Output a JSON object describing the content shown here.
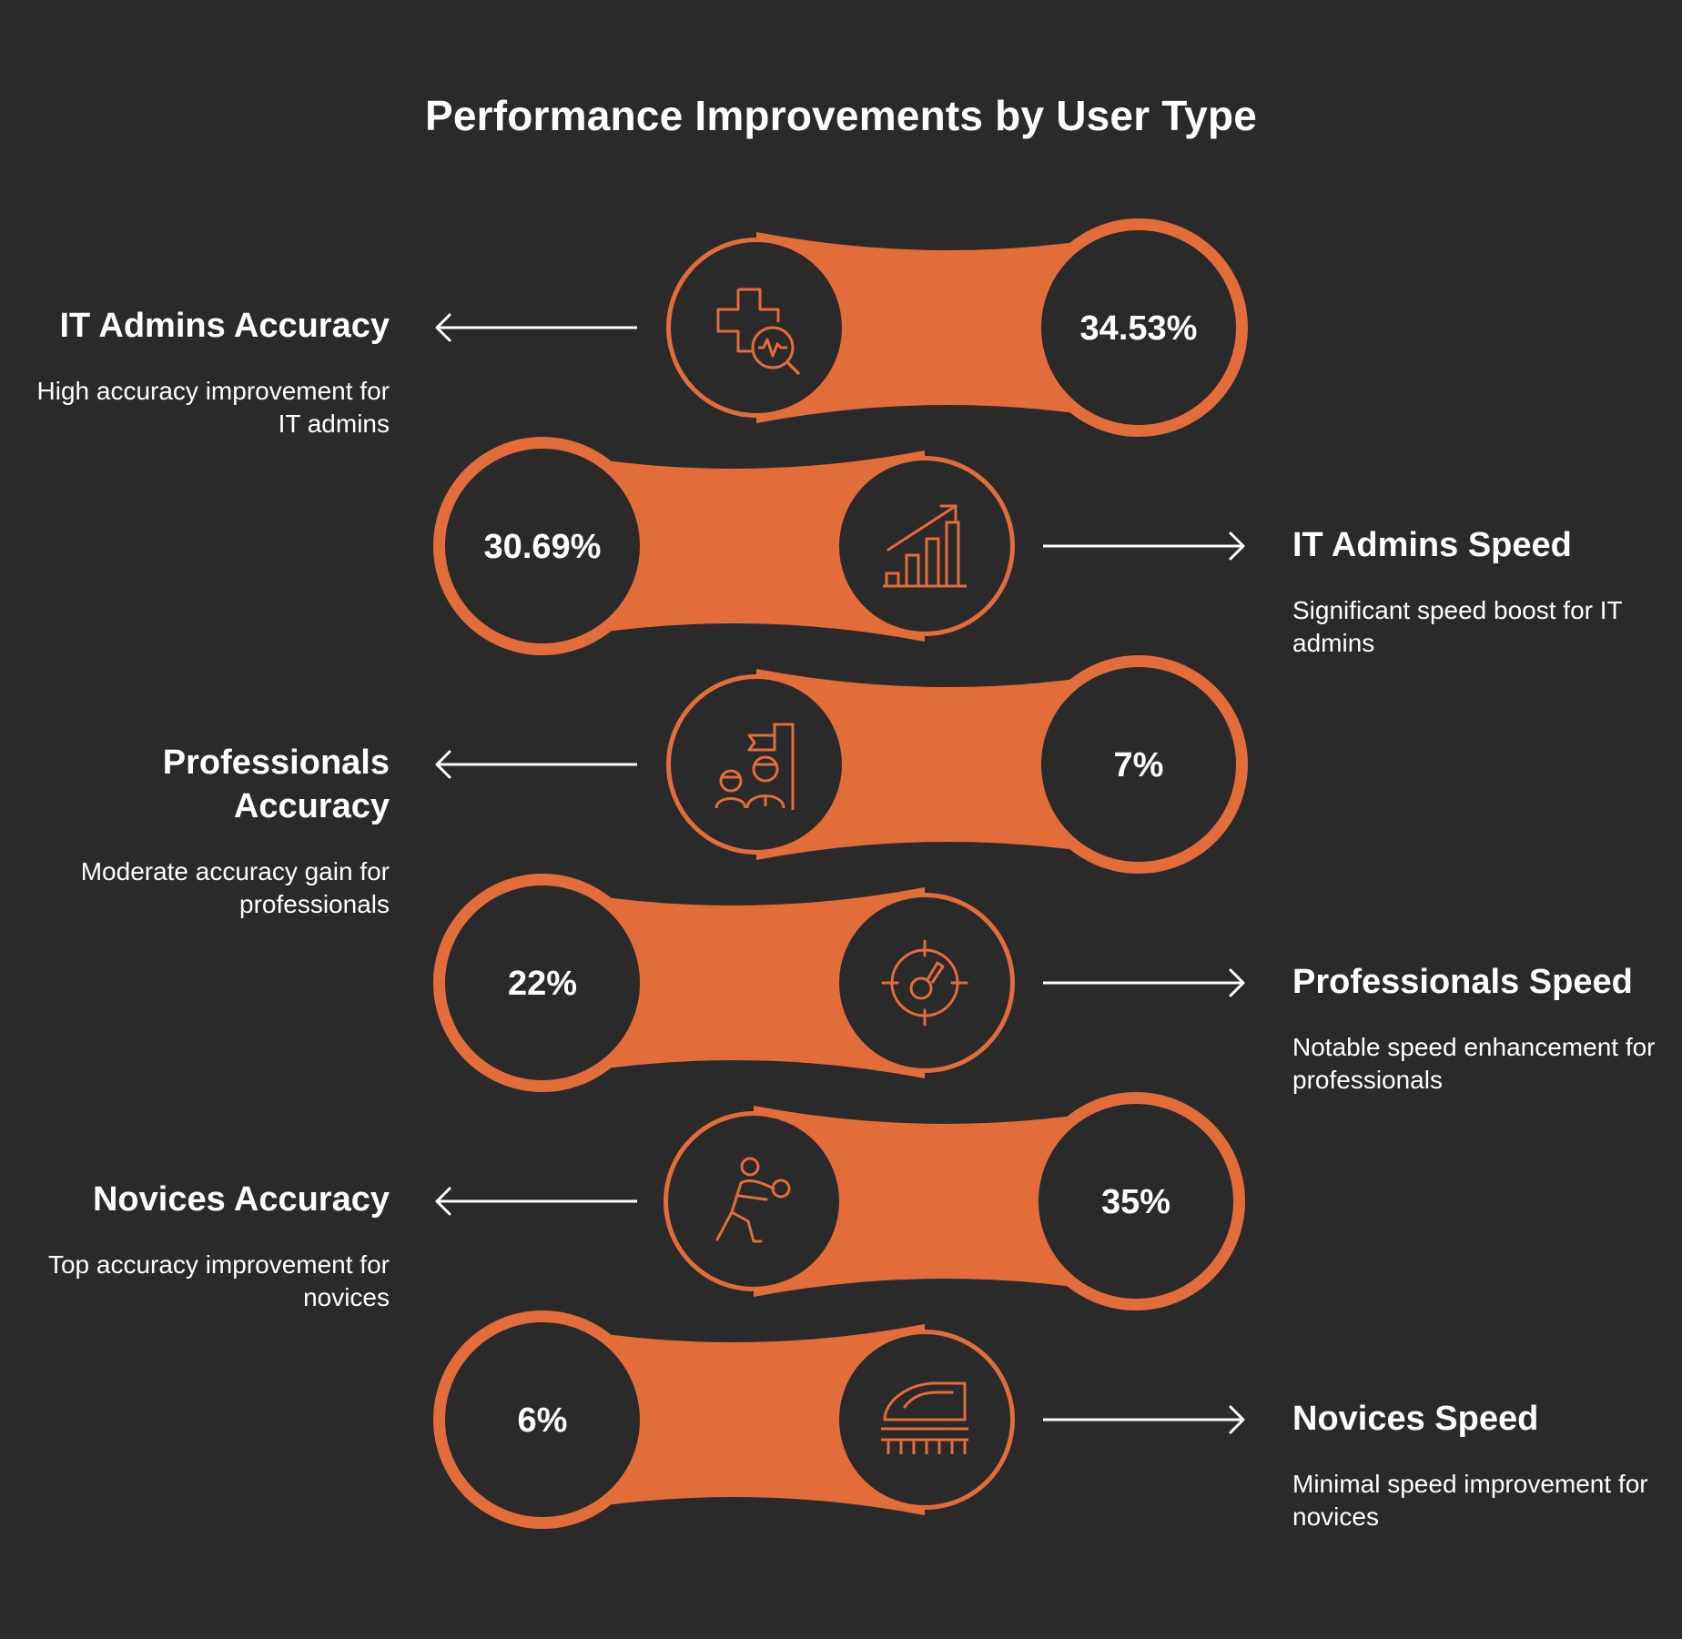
{
  "title": "Performance Improvements by User Type",
  "colors": {
    "background": "#2a2a2a",
    "accent": "#e36c3b",
    "text": "#ffffff",
    "ring": "#2a2a2a"
  },
  "items": [
    {
      "heading": "IT Admins Accuracy",
      "description": "High accuracy improvement for IT admins",
      "value": "34.53%",
      "icon": "medical-search-icon"
    },
    {
      "heading": "IT Admins Speed",
      "description": "Significant speed boost for IT admins",
      "value": "30.69%",
      "icon": "growth-chart-icon"
    },
    {
      "heading": "Professionals Accuracy",
      "description": "Moderate accuracy gain for professionals",
      "value": "7%",
      "icon": "team-flag-icon"
    },
    {
      "heading": "Professionals Speed",
      "description": "Notable speed enhancement for professionals",
      "value": "22%",
      "icon": "target-gauge-icon"
    },
    {
      "heading": "Novices Accuracy",
      "description": "Top accuracy improvement for novices",
      "value": "35%",
      "icon": "boxer-icon"
    },
    {
      "heading": "Novices Speed",
      "description": "Minimal speed improvement for novices",
      "value": "6%",
      "icon": "bullet-train-icon"
    }
  ]
}
